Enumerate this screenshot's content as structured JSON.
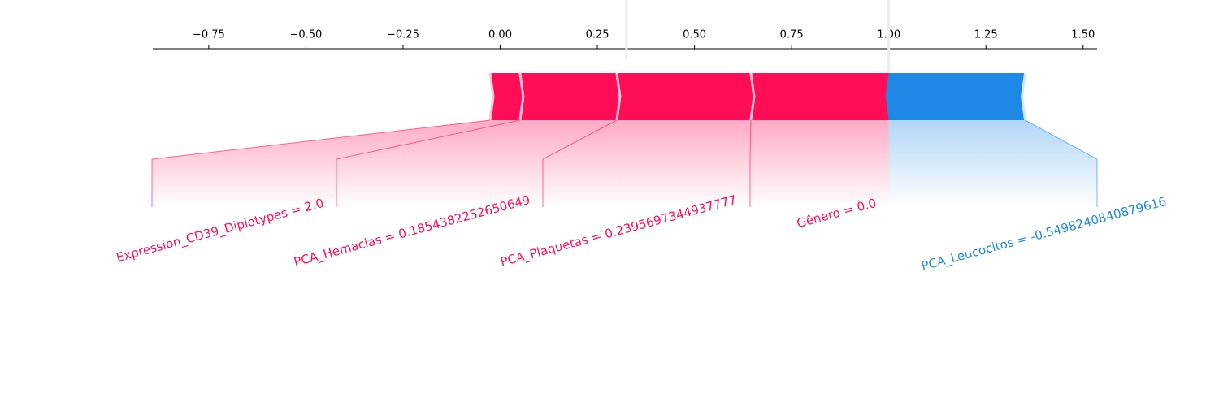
{
  "chart_data": {
    "type": "force",
    "base_value": 0.325,
    "output_value": {
      "value": 1.0,
      "label": "1.00"
    },
    "xlim": [
      -0.894,
      1.536
    ],
    "xticks": [
      {
        "value": -0.75,
        "label": "−0.75"
      },
      {
        "value": -0.5,
        "label": "−0.50"
      },
      {
        "value": -0.25,
        "label": "−0.25"
      },
      {
        "value": 0,
        "label": "0.00"
      },
      0.25,
      {
        "value": 0.5,
        "label": "0.50"
      },
      0.75,
      {
        "value": 1.0,
        "label": "1.00"
      },
      1.25,
      {
        "value": 1.5,
        "label": "1.50"
      }
    ],
    "positive_color": "#ff0d57",
    "negative_color": "#1e88e5",
    "features": [
      {
        "label": "Expression_CD39_Diplotypes = 2.0",
        "effect": 0.077
      },
      {
        "label": "PCA_Hemacias = 0.1854382252650649",
        "effect": 0.249
      },
      {
        "label": "PCA_Plaquetas = 0.2395697344937777",
        "effect": 0.345
      },
      {
        "label": "Gênero = 0.0",
        "effect": 0.355
      },
      {
        "label": "PCA_Leucocitos = -0.5498240840879616",
        "effect": -0.351
      }
    ]
  }
}
